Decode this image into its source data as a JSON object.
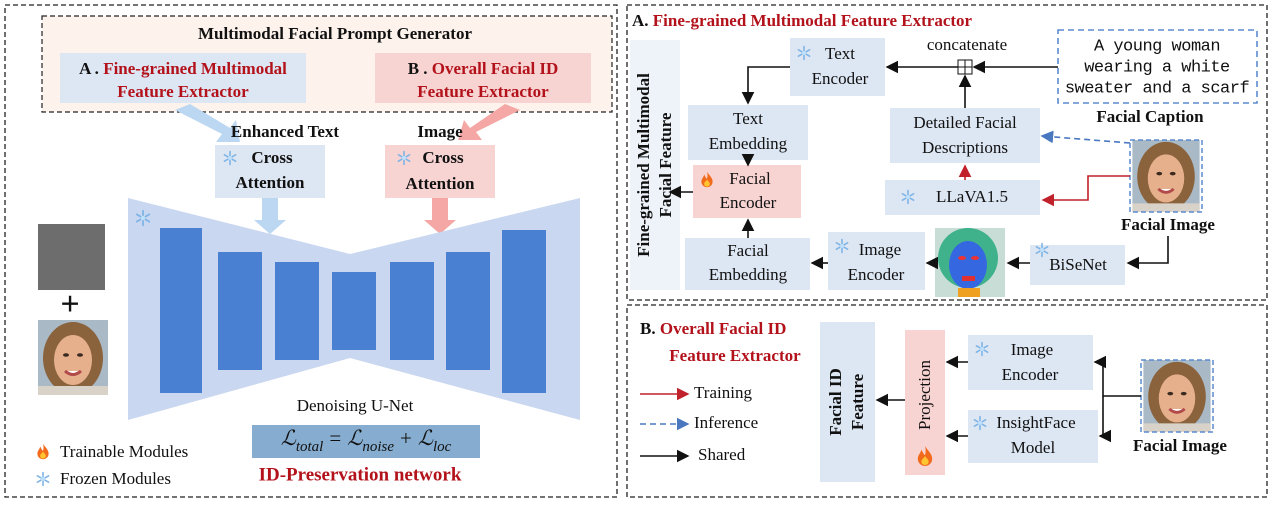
{
  "left_panel": {
    "generator_title": "Multimodal Facial Prompt Generator",
    "module_a": {
      "prefix": "A .",
      "lines": [
        "Fine-grained Multimodal",
        "Feature Extractor"
      ]
    },
    "module_b": {
      "prefix": "B .",
      "lines": [
        "Overall Facial ID",
        "Feature Extractor"
      ]
    },
    "text_input_label": "Enhanced Text",
    "image_input_label": "Image",
    "text_cross_attention": [
      "Cross",
      "Attention"
    ],
    "image_cross_attention": [
      "Cross",
      "Attention"
    ],
    "plus": "+",
    "unet_label": "Denoising U-Net",
    "loss": {
      "lhs": {
        "symbol": "ℒ",
        "sub": "total"
      },
      "equals": "=",
      "term1": {
        "symbol": "ℒ",
        "sub": "noise"
      },
      "plus": "+",
      "term2": {
        "symbol": "ℒ",
        "sub": "loc"
      }
    },
    "network_title": "ID-Preservation network",
    "legend": [
      "Trainable Modules",
      "Frozen Modules"
    ]
  },
  "panel_a": {
    "label": "A.",
    "title": "Fine-grained Multimodal Feature Extractor",
    "side_label": [
      "Fine-grained Multimodal",
      "Facial Feature"
    ],
    "text_encoder": [
      "Text",
      "Encoder"
    ],
    "concatenate": "concatenate",
    "caption": [
      "A young woman",
      "wearing a white",
      "sweater and a scarf"
    ],
    "caption_label": "Facial Caption",
    "text_embedding": [
      "Text",
      "Embedding"
    ],
    "descriptions": [
      "Detailed Facial",
      "Descriptions"
    ],
    "facial_encoder": [
      "Facial",
      "Encoder"
    ],
    "llava": "LLaVA1.5",
    "image_label": "Facial Image",
    "facial_embedding": [
      "Facial",
      "Embedding"
    ],
    "image_encoder": [
      "Image",
      "Encoder"
    ],
    "bisenet": "BiSeNet"
  },
  "panel_b": {
    "label": "B.",
    "title": [
      "Overall Facial ID",
      "Feature Extractor"
    ],
    "legend": [
      "Training",
      "Inference",
      "Shared"
    ],
    "id_feature": [
      "Facial ID",
      "Feature"
    ],
    "projection": "Projection",
    "image_encoder": [
      "Image",
      "Encoder"
    ],
    "insightface": [
      "InsightFace",
      "Model"
    ],
    "image_label": "Facial Image"
  }
}
